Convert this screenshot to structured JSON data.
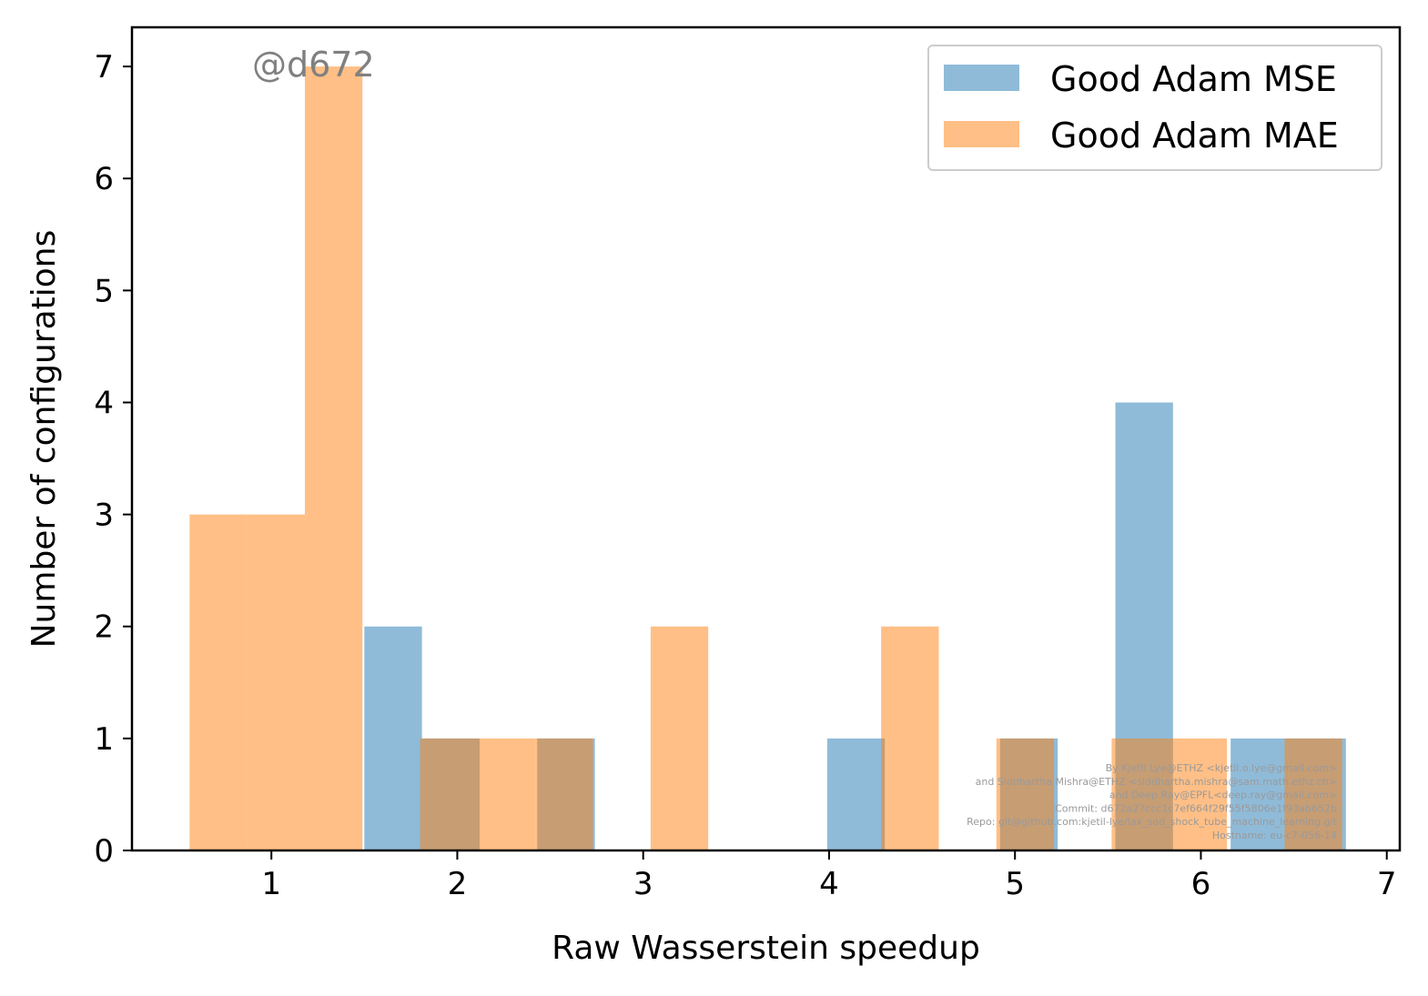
{
  "chart_data": {
    "type": "bar",
    "xlabel": "Raw Wasserstein speedup",
    "ylabel": "Number of configurations",
    "xlim": [
      0.25,
      7.07
    ],
    "ylim": [
      0,
      7.35
    ],
    "xticks": [
      1,
      2,
      3,
      4,
      5,
      6,
      7
    ],
    "yticks": [
      0,
      1,
      2,
      3,
      4,
      5,
      6,
      7
    ],
    "legend_position": "top-right",
    "annotation": "@d672",
    "series": [
      {
        "name": "Good Adam MSE",
        "color": "#1f77b4",
        "opacity": 0.5,
        "bins": [
          {
            "x0": 1.5,
            "x1": 1.81,
            "count": 2
          },
          {
            "x0": 1.81,
            "x1": 2.12,
            "count": 1
          },
          {
            "x0": 2.43,
            "x1": 2.74,
            "count": 1
          },
          {
            "x0": 3.99,
            "x1": 4.3,
            "count": 1
          },
          {
            "x0": 4.92,
            "x1": 5.23,
            "count": 1
          },
          {
            "x0": 5.54,
            "x1": 5.85,
            "count": 4
          },
          {
            "x0": 6.16,
            "x1": 6.47,
            "count": 1
          },
          {
            "x0": 6.47,
            "x1": 6.78,
            "count": 1
          }
        ]
      },
      {
        "name": "Good Adam MAE",
        "color": "#ff7f0e",
        "opacity": 0.5,
        "bins": [
          {
            "x0": 0.56,
            "x1": 0.87,
            "count": 3
          },
          {
            "x0": 0.87,
            "x1": 1.18,
            "count": 3
          },
          {
            "x0": 1.18,
            "x1": 1.49,
            "count": 7
          },
          {
            "x0": 1.8,
            "x1": 2.11,
            "count": 1
          },
          {
            "x0": 2.11,
            "x1": 2.42,
            "count": 1
          },
          {
            "x0": 2.42,
            "x1": 2.73,
            "count": 1
          },
          {
            "x0": 3.04,
            "x1": 3.35,
            "count": 2
          },
          {
            "x0": 4.28,
            "x1": 4.59,
            "count": 2
          },
          {
            "x0": 4.9,
            "x1": 5.21,
            "count": 1
          },
          {
            "x0": 5.52,
            "x1": 5.83,
            "count": 1
          },
          {
            "x0": 5.83,
            "x1": 6.14,
            "count": 1
          },
          {
            "x0": 6.45,
            "x1": 6.76,
            "count": 1
          }
        ]
      }
    ],
    "credits": [
      "By Kjetil Lye@ETHZ <kjetil.o.lye@gmail.com>",
      "and Siddhartha Mishra@ETHZ <siddhartha.mishra@sam.math.ethz.ch>",
      "and Deep Ray@EPFL<deep.ray@gmail.com>",
      "Commit: d672a27ccc1c7ef664f29f55f5806e1f93ab652b",
      "Repo: git@github.com:kjetil-lye/lax_sod_shock_tube_machine_learning.git",
      "Hostname: eu-c7-056-14"
    ]
  }
}
